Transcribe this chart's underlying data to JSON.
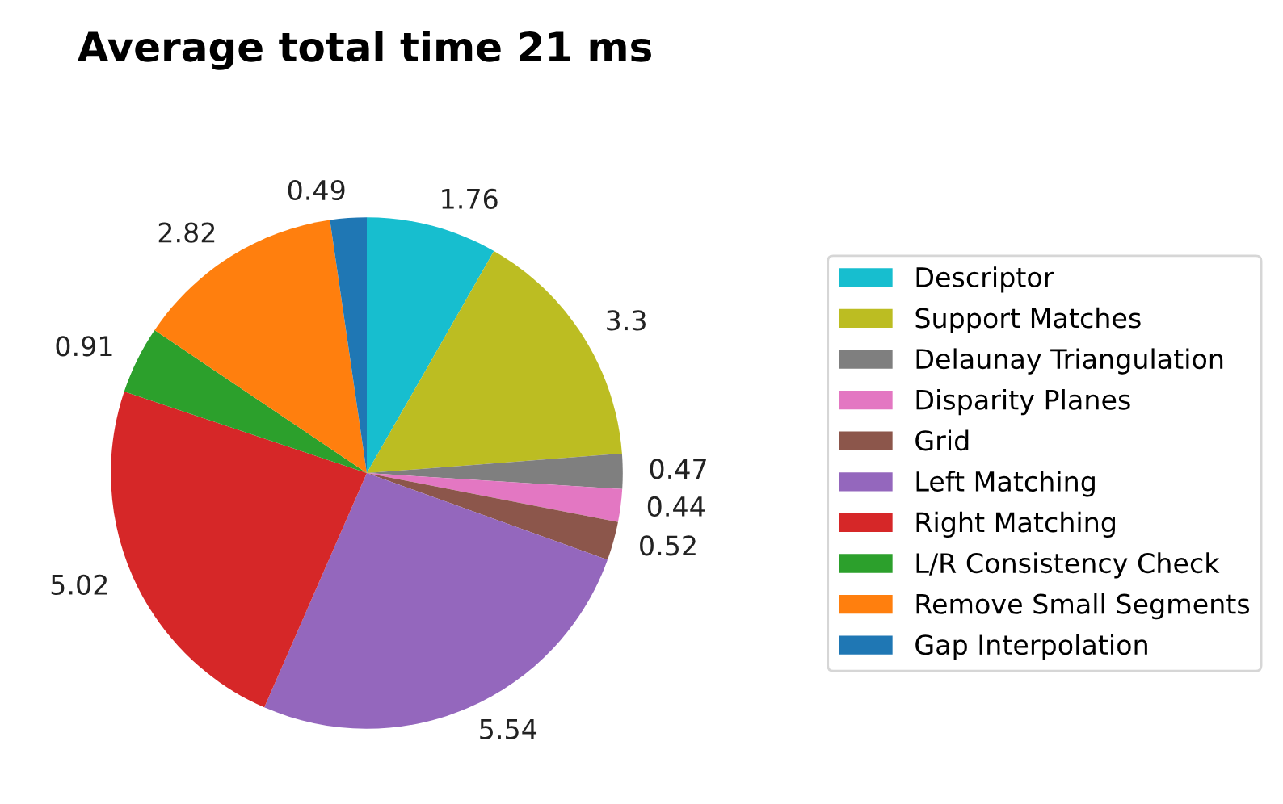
{
  "chart_data": {
    "type": "pie",
    "title": "Average total time 21 ms",
    "categories": [
      "Descriptor",
      "Support Matches",
      "Delaunay Triangulation",
      "Disparity Planes",
      "Grid",
      "Left Matching",
      "Right Matching",
      "L/R Consistency Check",
      "Remove Small Segments",
      "Gap Interpolation"
    ],
    "values": [
      1.76,
      3.3,
      0.47,
      0.44,
      0.52,
      5.54,
      5.02,
      0.91,
      2.82,
      0.49
    ],
    "colors": [
      "#17becf",
      "#bcbd22",
      "#7f7f7f",
      "#e377c2",
      "#8c564b",
      "#9467bd",
      "#d62728",
      "#2ca02c",
      "#ff7f0e",
      "#1f77b4"
    ],
    "data_labels": true,
    "legend": "right"
  }
}
